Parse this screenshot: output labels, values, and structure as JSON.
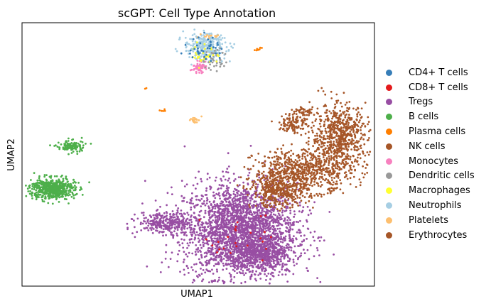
{
  "chart_data": {
    "type": "scatter",
    "title": "scGPT: Cell Type Annotation",
    "xlabel": "UMAP1",
    "ylabel": "UMAP2",
    "xlim": [
      0,
      100
    ],
    "ylim": [
      0,
      100
    ],
    "show_ticks": false,
    "grid": false,
    "legend_placement": "right",
    "legend": [
      {
        "name": "CD4+ T cells",
        "color": "#377eb8"
      },
      {
        "name": "CD8+ T cells",
        "color": "#e41a1c"
      },
      {
        "name": "Tregs",
        "color": "#984ea3"
      },
      {
        "name": "B cells",
        "color": "#4daf4a"
      },
      {
        "name": "Plasma cells",
        "color": "#ff7f00"
      },
      {
        "name": "NK cells",
        "color": "#a65628"
      },
      {
        "name": "Monocytes",
        "color": "#f781bf"
      },
      {
        "name": "Dendritic cells",
        "color": "#999999"
      },
      {
        "name": "Macrophages",
        "color": "#ffff33"
      },
      {
        "name": "Neutrophils",
        "color": "#a6cee3"
      },
      {
        "name": "Platelets",
        "color": "#fdbf6f"
      },
      {
        "name": "Erythrocytes",
        "color": "#a65628"
      }
    ],
    "clusters": [
      {
        "type": "Tregs",
        "cx": 62,
        "cy": 21,
        "sx": 8,
        "sy": 9,
        "n": 2600
      },
      {
        "type": "Tregs",
        "cx": 68,
        "cy": 12,
        "sx": 4,
        "sy": 3,
        "n": 450
      },
      {
        "type": "Tregs",
        "cx": 41,
        "cy": 24,
        "sx": 4,
        "sy": 2,
        "n": 300
      },
      {
        "type": "NK cells",
        "cx": 80,
        "cy": 44,
        "sx": 7,
        "sy": 4,
        "n": 650
      },
      {
        "type": "NK cells",
        "cx": 90,
        "cy": 57,
        "sx": 4,
        "sy": 6,
        "n": 650
      },
      {
        "type": "NK cells",
        "cx": 73,
        "cy": 36,
        "sx": 4,
        "sy": 3,
        "n": 400
      },
      {
        "type": "NK cells",
        "cx": 77,
        "cy": 62,
        "sx": 2,
        "sy": 2,
        "n": 110
      },
      {
        "type": "NK cells",
        "cx": 80.5,
        "cy": 66,
        "sx": 1.3,
        "sy": 0.8,
        "n": 40
      },
      {
        "type": "B cells",
        "cx": 8.5,
        "cy": 37,
        "sx": 3.2,
        "sy": 2,
        "n": 560
      },
      {
        "type": "B cells",
        "cx": 14,
        "cy": 53,
        "sx": 2,
        "sy": 1.2,
        "n": 110
      },
      {
        "type": "Neutrophils",
        "cx": 52,
        "cy": 91,
        "sx": 3,
        "sy": 2.5,
        "n": 300
      },
      {
        "type": "Monocytes",
        "cx": 50,
        "cy": 83,
        "sx": 1,
        "sy": 1,
        "n": 50
      },
      {
        "type": "Dendritic cells",
        "cx": 55,
        "cy": 86,
        "sx": 1.5,
        "sy": 2.5,
        "n": 45
      },
      {
        "type": "Macrophages",
        "cx": 52,
        "cy": 88,
        "sx": 2,
        "sy": 2,
        "n": 30
      },
      {
        "type": "Platelets",
        "cx": 49,
        "cy": 63,
        "sx": 1,
        "sy": 0.6,
        "n": 20
      },
      {
        "type": "Platelets",
        "cx": 53,
        "cy": 95,
        "sx": 1.5,
        "sy": 0.4,
        "n": 15
      },
      {
        "type": "Plasma cells",
        "cx": 40,
        "cy": 67,
        "sx": 0.4,
        "sy": 0.4,
        "n": 5
      },
      {
        "type": "Plasma cells",
        "cx": 67,
        "cy": 90,
        "sx": 0.8,
        "sy": 0.3,
        "n": 8
      },
      {
        "type": "Plasma cells",
        "cx": 35,
        "cy": 75,
        "sx": 0.2,
        "sy": 0.2,
        "n": 2
      },
      {
        "type": "CD4+ T cells",
        "cx": 52,
        "cy": 90,
        "sx": 2.5,
        "sy": 2.5,
        "n": 40
      },
      {
        "type": "CD8+ T cells",
        "cx": 62,
        "cy": 20,
        "sx": 5,
        "sy": 6,
        "n": 25
      }
    ]
  }
}
